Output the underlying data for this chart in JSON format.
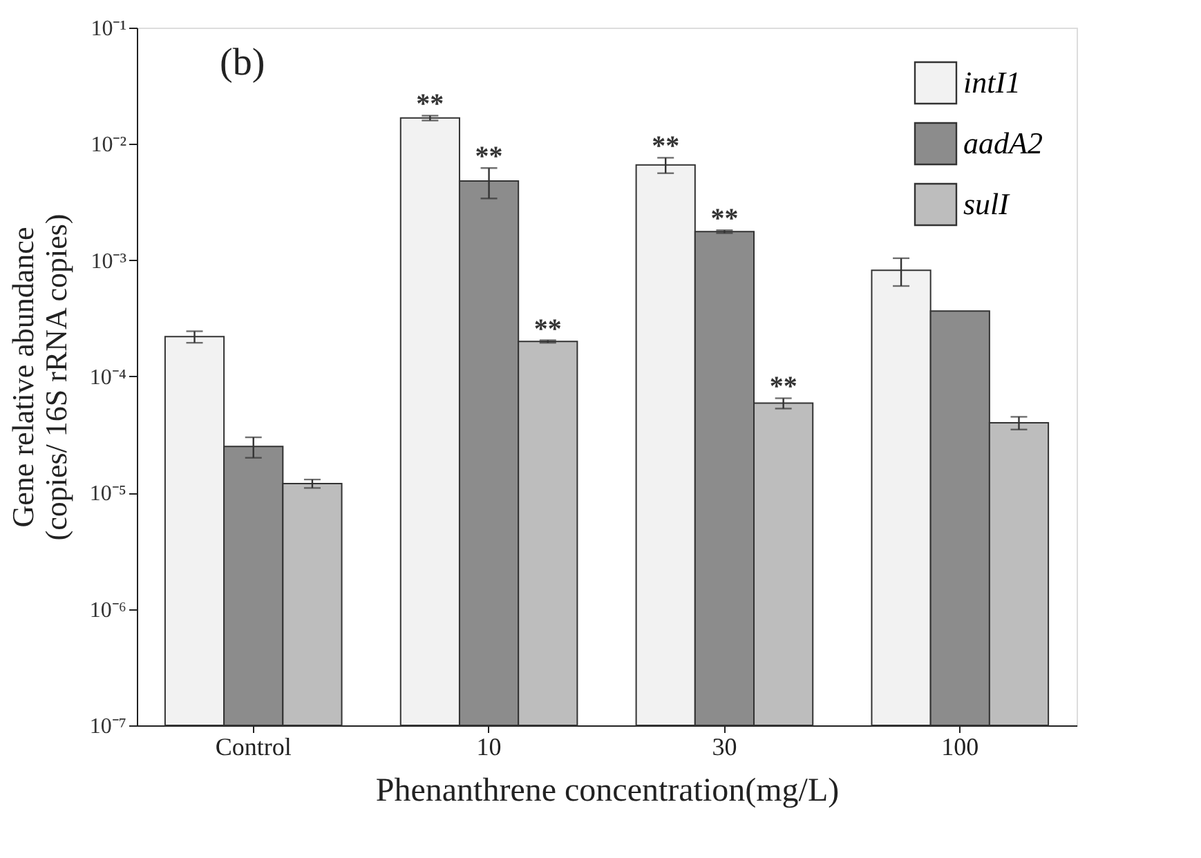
{
  "chart_data": {
    "type": "bar",
    "xlabel": "Phenanthrene concentration(mg/L)",
    "ylabel": "Gene relative abundance\n(copies/ 16S rRNA copies)",
    "categories": [
      "Control",
      "10",
      "30",
      "100"
    ],
    "series": [
      {
        "name": "intI1",
        "color": "#f2f2f2",
        "values": [
          0.00022,
          0.0167,
          0.0066,
          0.00082
        ],
        "errors": [
          2.5e-05,
          0.0008,
          0.001,
          0.00022
        ],
        "value_labels": [
          null,
          "**",
          "**",
          null
        ]
      },
      {
        "name": "aadA2",
        "color": "#8c8c8c",
        "values": [
          2.5e-05,
          0.0048,
          0.00176,
          0.000365
        ],
        "errors": [
          5e-06,
          0.0014,
          5e-05,
          null
        ],
        "value_labels": [
          null,
          "**",
          "**",
          null
        ]
      },
      {
        "name": "sulI",
        "color": "#bdbdbd",
        "values": [
          1.2e-05,
          0.0002,
          5.9e-05,
          4e-05
        ],
        "errors": [
          1e-06,
          5e-06,
          6e-06,
          5e-06
        ],
        "value_labels": [
          null,
          "**",
          "**",
          null
        ]
      }
    ],
    "log": true,
    "ylim": [
      1e-07,
      0.1
    ],
    "yticks": [
      {
        "value": 1e-07,
        "label": "10⁻⁷"
      },
      {
        "value": 1e-06,
        "label": "10⁻⁶"
      },
      {
        "value": 1e-05,
        "label": "10⁻⁵"
      },
      {
        "value": 0.0001,
        "label": "10⁻⁴"
      },
      {
        "value": 0.001,
        "label": "10⁻³"
      },
      {
        "value": 0.01,
        "label": "10⁻²"
      },
      {
        "value": 0.1,
        "label": "10⁻¹"
      }
    ],
    "grid": false,
    "legend": "top right",
    "annotations": [
      "(b)"
    ]
  }
}
